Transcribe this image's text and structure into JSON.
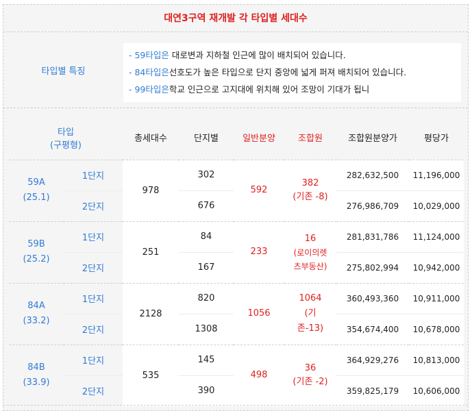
{
  "title": "대연3구역 재개발 각 타입별 세대수",
  "features": {
    "label": "타입별 특징",
    "lines": [
      {
        "type": "- 59타입은",
        "text": " 대로변과 지하철 인근에 많이 배치되어 있습니다."
      },
      {
        "type": "- 84타입은",
        "text": "선호도가 높은 타입으로 단지 중앙에 넓게 퍼져 배치되어 있습니다."
      },
      {
        "type": "- 99타입은",
        "text": "학교 인근으로 고지대에 위치해 있어 조망이 기대가 됩니"
      }
    ]
  },
  "table": {
    "headers": {
      "type_line1": "타입",
      "type_line2": "(구평형)",
      "total": "총세대수",
      "per_complex": "단지별",
      "general_sale": "일반분양",
      "union": "조합원",
      "union_price": "조합원분양가",
      "per_pyeong": "평당가"
    },
    "groups": [
      {
        "type": "59A",
        "old": "(25.1)",
        "total": "978",
        "general": "592",
        "union_line1": "382",
        "union_line2": "(기존 -8)",
        "union_line3": "",
        "rows": [
          {
            "danji": "1단지",
            "count": "302",
            "price": "282,632,500",
            "pyeong": "11,196,000"
          },
          {
            "danji": "2단지",
            "count": "676",
            "price": "276,986,709",
            "pyeong": "10,029,000"
          }
        ]
      },
      {
        "type": "59B",
        "old": "(25.2)",
        "total": "251",
        "general": "233",
        "union_line1": "16",
        "union_line2": "(로이의렛",
        "union_line3": "츠부동산)",
        "rows": [
          {
            "danji": "1단지",
            "count": "84",
            "price": "281,831,786",
            "pyeong": "11,124,000"
          },
          {
            "danji": "2단지",
            "count": "167",
            "price": "275,802,994",
            "pyeong": "10,942,000"
          }
        ]
      },
      {
        "type": "84A",
        "old": "(33.2)",
        "total": "2128",
        "general": "1056",
        "union_line1": "1064",
        "union_line2": "(기",
        "union_line3": "존-13)",
        "rows": [
          {
            "danji": "1단지",
            "count": "820",
            "price": "360,493,360",
            "pyeong": "10,911,000"
          },
          {
            "danji": "2단지",
            "count": "1308",
            "price": "354,674,400",
            "pyeong": "10,678,000"
          }
        ]
      },
      {
        "type": "84B",
        "old": "(33.9)",
        "total": "535",
        "general": "498",
        "union_line1": "36",
        "union_line2": "(기존 -2)",
        "union_line3": "",
        "rows": [
          {
            "danji": "1단지",
            "count": "145",
            "price": "364,929,276",
            "pyeong": "10,813,000"
          },
          {
            "danji": "2단지",
            "count": "390",
            "price": "359,825,179",
            "pyeong": "10,606,000"
          }
        ]
      }
    ]
  }
}
